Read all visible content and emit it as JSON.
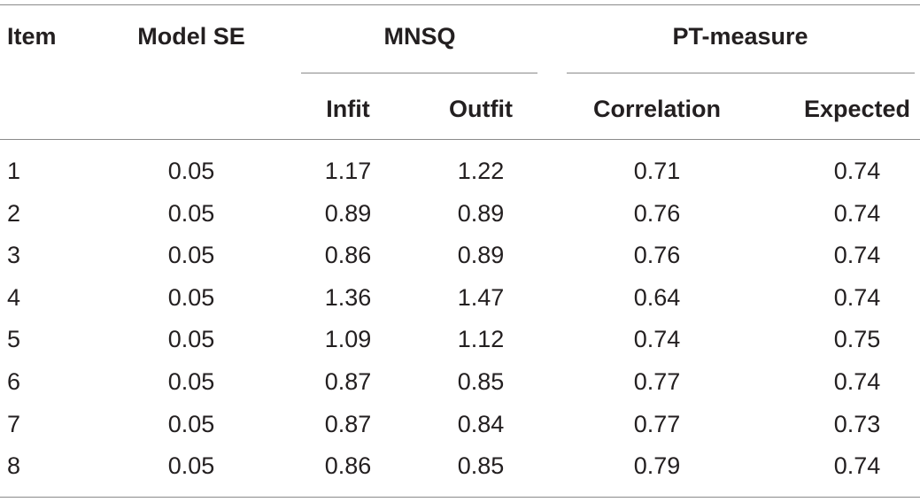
{
  "table": {
    "headers": {
      "item": "Item",
      "model_se": "Model SE",
      "mnsq": "MNSQ",
      "pt_measure": "PT-measure",
      "infit": "Infit",
      "outfit": "Outfit",
      "correlation": "Correlation",
      "expected": "Expected"
    },
    "rows": [
      {
        "item": "1",
        "model_se": "0.05",
        "infit": "1.17",
        "outfit": "1.22",
        "correlation": "0.71",
        "expected": "0.74"
      },
      {
        "item": "2",
        "model_se": "0.05",
        "infit": "0.89",
        "outfit": "0.89",
        "correlation": "0.76",
        "expected": "0.74"
      },
      {
        "item": "3",
        "model_se": "0.05",
        "infit": "0.86",
        "outfit": "0.89",
        "correlation": "0.76",
        "expected": "0.74"
      },
      {
        "item": "4",
        "model_se": "0.05",
        "infit": "1.36",
        "outfit": "1.47",
        "correlation": "0.64",
        "expected": "0.74"
      },
      {
        "item": "5",
        "model_se": "0.05",
        "infit": "1.09",
        "outfit": "1.12",
        "correlation": "0.74",
        "expected": "0.75"
      },
      {
        "item": "6",
        "model_se": "0.05",
        "infit": "0.87",
        "outfit": "0.85",
        "correlation": "0.77",
        "expected": "0.74"
      },
      {
        "item": "7",
        "model_se": "0.05",
        "infit": "0.87",
        "outfit": "0.84",
        "correlation": "0.77",
        "expected": "0.73"
      },
      {
        "item": "8",
        "model_se": "0.05",
        "infit": "0.86",
        "outfit": "0.85",
        "correlation": "0.79",
        "expected": "0.74"
      }
    ]
  }
}
